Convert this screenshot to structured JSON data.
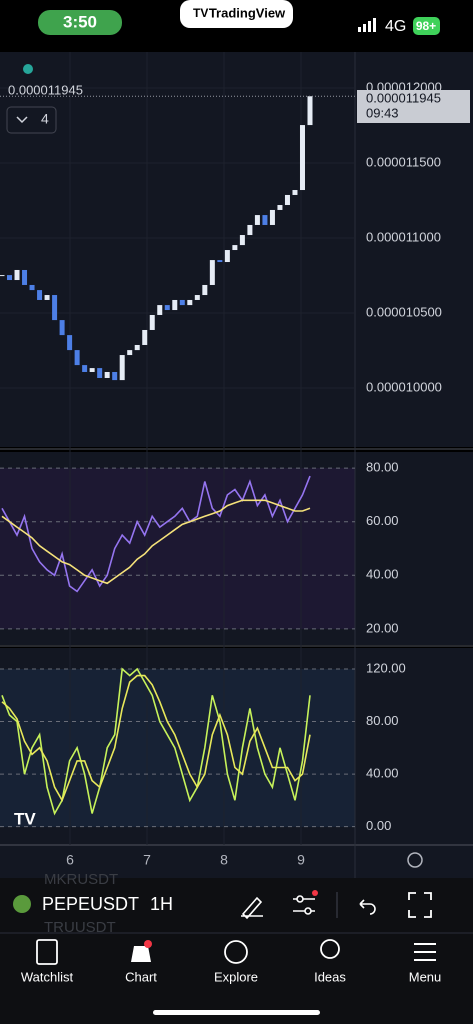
{
  "status_bar": {
    "time": "3:50",
    "app": "TradingView",
    "network": "4G",
    "battery": "98+"
  },
  "chart": {
    "last_price": "0.000011945",
    "countdown": "09:43",
    "indicator_count": "4",
    "x_axis": [
      "6",
      "7",
      "8",
      "9"
    ],
    "price_panel": {
      "type": "candlestick",
      "up_color": "#e6ecf5",
      "down_color": "#4d7fe6",
      "closes": [
        1.0753e-05,
        1.072e-05,
        1.0787e-05,
        1.0687e-05,
        1.0653e-05,
        1.0587e-05,
        1.062e-05,
        1.0453e-05,
        1.0353e-05,
        1.0253e-05,
        1.0153e-05,
        1.0107e-05,
        1.0133e-05,
        1.0067e-05,
        1.0107e-05,
        1.0053e-05,
        1.022e-05,
        1.0253e-05,
        1.0287e-05,
        1.0387e-05,
        1.0487e-05,
        1.0553e-05,
        1.052e-05,
        1.0587e-05,
        1.0553e-05,
        1.0587e-05,
        1.062e-05,
        1.0687e-05,
        1.0853e-05,
        1.084e-05,
        1.092e-05,
        1.0953e-05,
        1.102e-05,
        1.1087e-05,
        1.1153e-05,
        1.1087e-05,
        1.1187e-05,
        1.122e-05,
        1.1287e-05,
        1.132e-05,
        1.1753e-05,
        1.1945e-05
      ],
      "ylim": [
        9.607e-06,
        1.224e-05
      ],
      "yticks": [
        {
          "value": 1.2e-05,
          "label": "0.000012000"
        },
        {
          "value": 1.15e-05,
          "label": "0.000011500"
        },
        {
          "value": 1.1e-05,
          "label": "0.000011000"
        },
        {
          "value": 1.05e-05,
          "label": "0.000010500"
        },
        {
          "value": 1e-05,
          "label": "0.000010000"
        }
      ]
    },
    "rsi_panel": {
      "type": "line",
      "ylim": [
        14,
        86
      ],
      "yticks": [
        {
          "value": 80,
          "label": "80.00"
        },
        {
          "value": 60,
          "label": "60.00"
        },
        {
          "value": 40,
          "label": "40.00"
        },
        {
          "value": 20,
          "label": "20.00"
        }
      ],
      "series": [
        {
          "color": "#9575f0",
          "values": [
            65,
            60,
            55,
            62,
            50,
            45,
            42,
            40,
            48,
            36,
            34,
            38,
            42,
            36,
            40,
            50,
            55,
            52,
            60,
            55,
            62,
            58,
            60,
            62,
            65,
            60,
            62,
            75,
            65,
            62,
            70,
            72,
            68,
            75,
            66,
            70,
            62,
            68,
            60,
            65,
            70,
            77
          ]
        },
        {
          "color": "#f5e27a",
          "values": [
            62,
            60,
            58,
            56,
            54,
            51,
            49,
            47,
            45,
            44,
            42,
            40,
            39,
            38,
            37,
            39,
            41,
            43,
            46,
            48,
            51,
            53,
            55,
            57,
            59,
            60,
            61,
            62,
            63,
            64,
            66,
            67,
            68,
            68,
            68,
            68,
            67,
            66,
            65,
            64,
            64,
            65
          ]
        }
      ]
    },
    "stoch_panel": {
      "type": "line",
      "ylim": [
        -14,
        136
      ],
      "yticks": [
        {
          "value": 120,
          "label": "120.00"
        },
        {
          "value": 80,
          "label": "80.00"
        },
        {
          "value": 40,
          "label": "40.00"
        },
        {
          "value": 0,
          "label": "0.00"
        }
      ],
      "series": [
        {
          "color": "#c6f25a",
          "values": [
            100,
            85,
            80,
            40,
            60,
            70,
            30,
            10,
            20,
            50,
            60,
            40,
            10,
            30,
            60,
            70,
            120,
            115,
            120,
            110,
            100,
            80,
            70,
            60,
            40,
            20,
            30,
            60,
            100,
            80,
            40,
            20,
            60,
            90,
            60,
            40,
            30,
            60,
            40,
            20,
            50,
            100
          ]
        },
        {
          "color": "#e8e85a",
          "values": [
            95,
            90,
            82,
            65,
            55,
            60,
            50,
            30,
            20,
            35,
            50,
            50,
            35,
            30,
            45,
            60,
            90,
            110,
            115,
            115,
            108,
            95,
            80,
            70,
            55,
            40,
            30,
            40,
            70,
            85,
            70,
            45,
            40,
            65,
            75,
            60,
            45,
            45,
            45,
            35,
            40,
            70
          ]
        }
      ]
    }
  },
  "toolbar": {
    "symbol": "PEPEUSDT",
    "interval": "1H",
    "ghost_symbols": [
      "MKRUSDT",
      "TRUUSDT"
    ]
  },
  "nav": [
    "Watchlist",
    "Chart",
    "Explore",
    "Ideas",
    "Menu"
  ]
}
